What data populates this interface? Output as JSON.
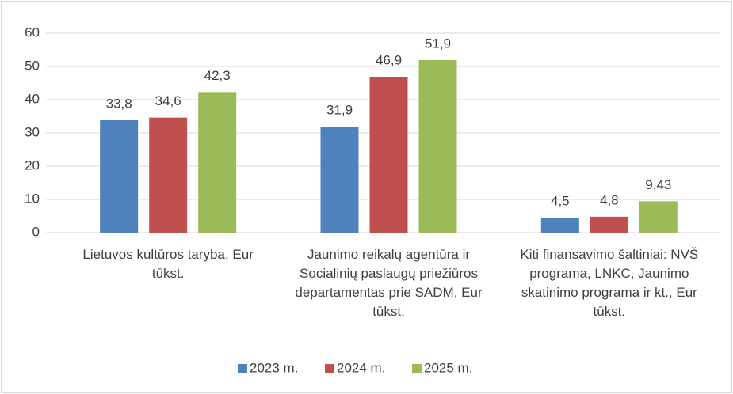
{
  "chart_data": {
    "type": "bar",
    "categories": [
      "Lietuvos kultūros taryba, Eur tūkst.",
      "Jaunimo reikalų agentūra ir Socialinių paslaugų priežiūros departamentas prie SADM,  Eur tūkst.",
      "Kiti finansavimo šaltiniai: NVŠ programa, LNKC, Jaunimo skatinimo programa ir kt., Eur tūkst."
    ],
    "series": [
      {
        "name": "2023 m.",
        "color": "#4f81bd",
        "values": [
          33.8,
          31.9,
          4.5
        ],
        "value_labels": [
          "33,8",
          "31,9",
          "4,5"
        ]
      },
      {
        "name": "2024 m.",
        "color": "#c0504d",
        "values": [
          34.6,
          46.9,
          4.8
        ],
        "value_labels": [
          "34,6",
          "46,9",
          "4,8"
        ]
      },
      {
        "name": "2025 m.",
        "color": "#9bbb59",
        "values": [
          42.3,
          51.9,
          9.43
        ],
        "value_labels": [
          "42,3",
          "51,9",
          "9,43"
        ]
      }
    ],
    "ylim": [
      0,
      60
    ],
    "yticks": [
      0,
      10,
      20,
      30,
      40,
      50,
      60
    ],
    "grid": true,
    "legend": "bottom"
  }
}
